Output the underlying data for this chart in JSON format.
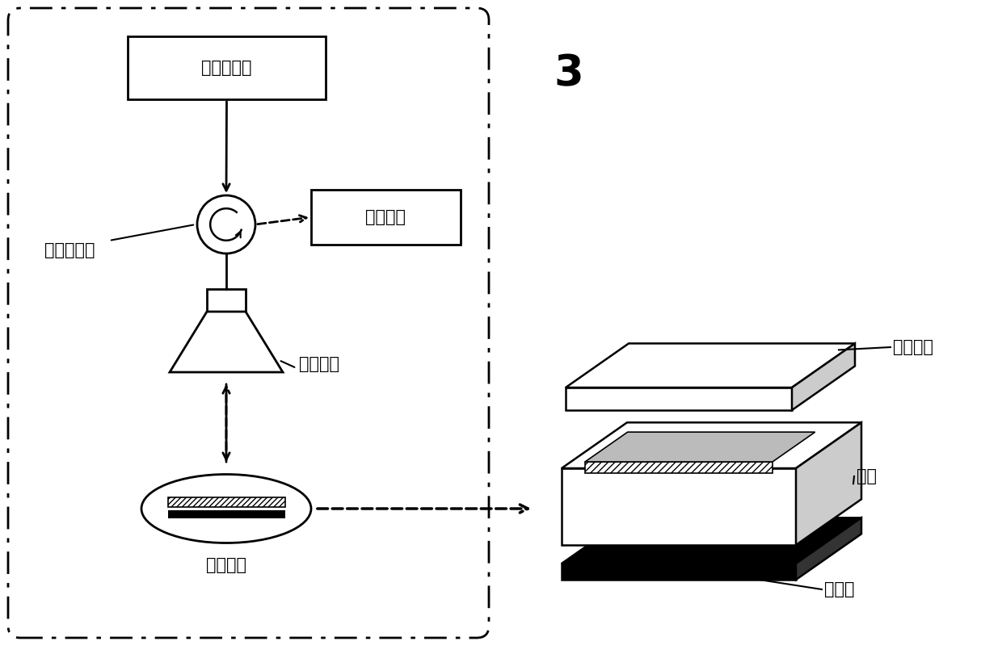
{
  "bg_color": "#ffffff",
  "line_color": "#000000",
  "text_color": "#000000",
  "font_size_label": 15,
  "font_size_number": 38,
  "label_wangluo": "网络分析仪",
  "label_shuju": "数据处理",
  "label_shepin": "射频环形器",
  "label_haojiao": "号角天线",
  "label_buchangtianxian": "补偿天线",
  "label_fushe": "远射贴片",
  "label_jizhi": "基质",
  "label_jiedi": "接地板",
  "label_3": "3"
}
